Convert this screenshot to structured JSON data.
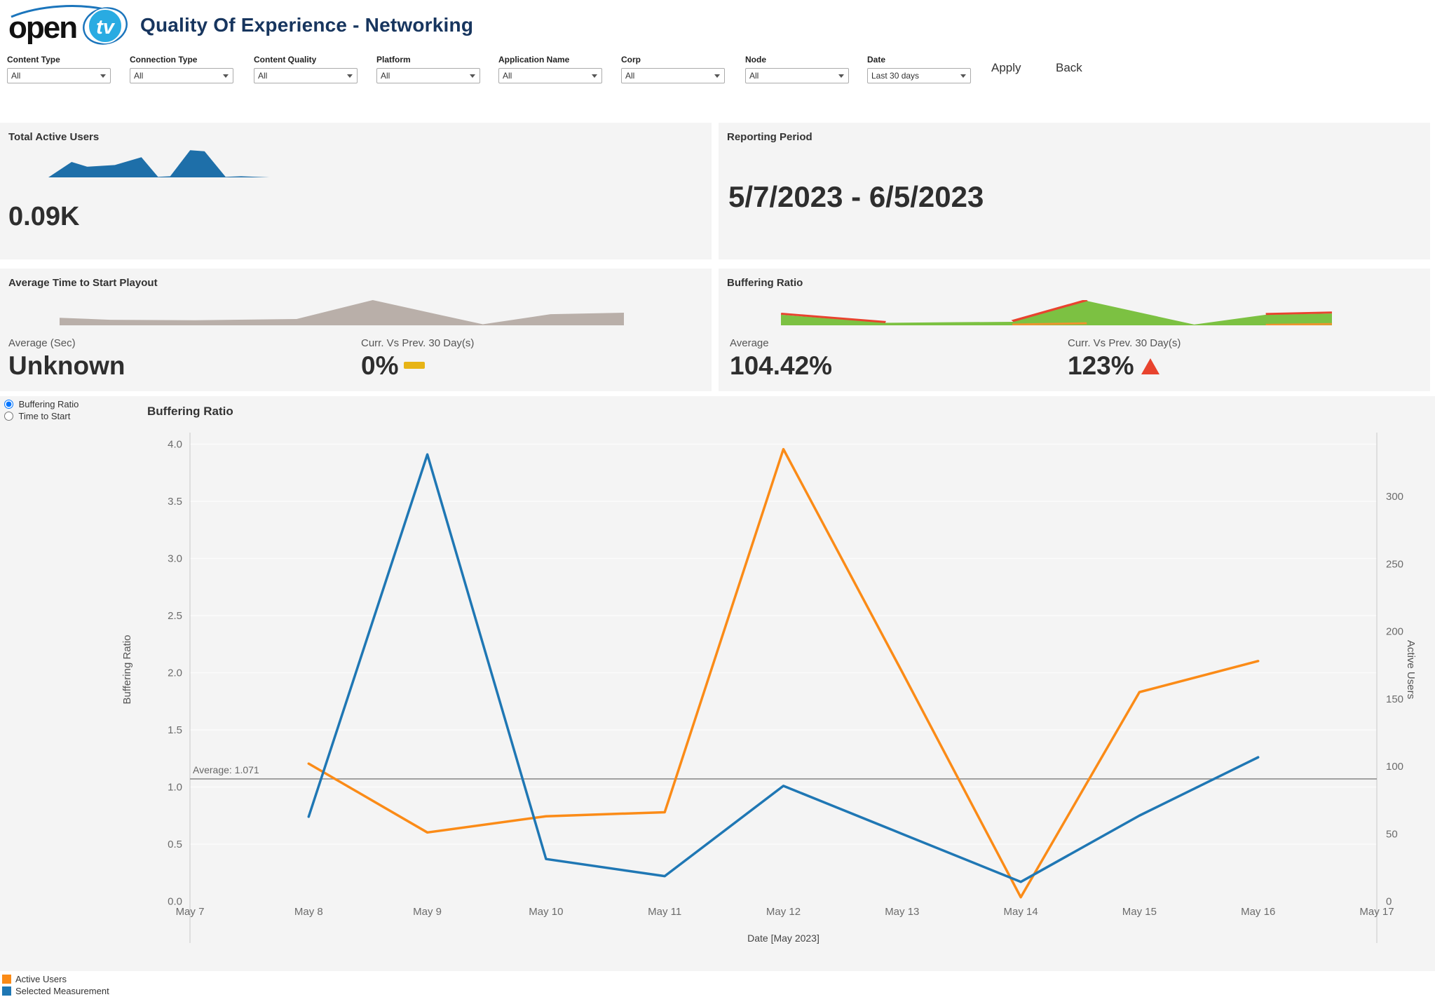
{
  "header": {
    "logo_text": "open",
    "logo_tv": "tv",
    "title": "Quality Of Experience - Networking"
  },
  "actions": {
    "apply": "Apply",
    "back": "Back"
  },
  "filters": [
    {
      "label": "Content Type",
      "value": "All"
    },
    {
      "label": "Connection Type",
      "value": "All"
    },
    {
      "label": "Content Quality",
      "value": "All"
    },
    {
      "label": "Platform",
      "value": "All"
    },
    {
      "label": "Application Name",
      "value": "All"
    },
    {
      "label": "Corp",
      "value": "All"
    },
    {
      "label": "Node",
      "value": "All"
    },
    {
      "label": "Date",
      "value": "Last 30 days"
    }
  ],
  "kpis": {
    "active_users": {
      "title": "Total Active Users",
      "value": "0.09K"
    },
    "reporting_period": {
      "title": "Reporting Period",
      "value": "5/7/2023 - 6/5/2023"
    },
    "time_to_start": {
      "title": "Average Time to Start Playout",
      "avg_label": "Average (Sec)",
      "avg_value": "Unknown",
      "delta_label": "Curr. Vs Prev. 30 Day(s)",
      "delta_value": "0%",
      "delta_direction": "flat",
      "delta_color": "#e7b416"
    },
    "buffering": {
      "title": "Buffering Ratio",
      "avg_label": "Average",
      "avg_value": "104.42%",
      "delta_label": "Curr. Vs Prev. 30 Day(s)",
      "delta_value": "123%",
      "delta_direction": "up",
      "delta_color": "#e8432e"
    }
  },
  "measurement_toggle": {
    "options": [
      {
        "label": "Buffering Ratio",
        "selected": true
      },
      {
        "label": "Time to Start",
        "selected": false
      }
    ]
  },
  "sparklines": {
    "active_users": {
      "color": "#1e6fa9",
      "points": [
        [
          0,
          0
        ],
        [
          0.105,
          0.55
        ],
        [
          0.175,
          0.38
        ],
        [
          0.3,
          0.44
        ],
        [
          0.42,
          0.72
        ],
        [
          0.495,
          0.02
        ],
        [
          0.55,
          0.04
        ],
        [
          0.64,
          0.97
        ],
        [
          0.705,
          0.93
        ],
        [
          0.8,
          0.02
        ],
        [
          0.87,
          0.04
        ],
        [
          1,
          0
        ]
      ]
    },
    "time_to_start": {
      "color": "#b9afa9",
      "points": [
        [
          0,
          0.3
        ],
        [
          0.09,
          0.22
        ],
        [
          0.24,
          0.2
        ],
        [
          0.42,
          0.25
        ],
        [
          0.555,
          1.0
        ],
        [
          0.75,
          0.04
        ],
        [
          0.87,
          0.44
        ],
        [
          1,
          0.5
        ]
      ]
    },
    "buffering": {
      "color": "#7cc142",
      "points": [
        [
          0,
          0.42
        ],
        [
          0.19,
          0.1
        ],
        [
          0.3,
          0.12
        ],
        [
          0.42,
          0.14
        ],
        [
          0.555,
          0.97
        ],
        [
          0.75,
          0.03
        ],
        [
          0.88,
          0.42
        ],
        [
          1,
          0.47
        ]
      ],
      "accents": [
        {
          "color": "#e8432e",
          "points": [
            [
              0,
              0.46
            ],
            [
              0.19,
              0.13
            ]
          ]
        },
        {
          "color": "#e8432e",
          "points": [
            [
              0.42,
              0.17
            ],
            [
              0.555,
              1.0
            ]
          ]
        },
        {
          "color": "#e8432e",
          "points": [
            [
              0.88,
              0.45
            ],
            [
              1,
              0.51
            ]
          ]
        },
        {
          "color": "#f0932f",
          "points": [
            [
              0.42,
              0.03
            ],
            [
              0.555,
              0.08
            ]
          ]
        },
        {
          "color": "#f0932f",
          "points": [
            [
              0.88,
              0.02
            ],
            [
              1,
              0.05
            ]
          ]
        }
      ]
    }
  },
  "chart_data": {
    "type": "line",
    "title": "Buffering Ratio",
    "categories": [
      "May 7",
      "May 8",
      "May 9",
      "May 10",
      "May 11",
      "May 12",
      "May 13",
      "May 14",
      "May 15",
      "May 16",
      "May 17"
    ],
    "xlabel": "Date [May 2023]",
    "left_axis": {
      "label": "Buffering Ratio",
      "ticks": [
        "0.0",
        "0.5",
        "1.0",
        "1.5",
        "2.0",
        "2.5",
        "3.0",
        "3.5",
        "4.0"
      ],
      "range": [
        0,
        4.13
      ]
    },
    "right_axis": {
      "label": "Active Users",
      "ticks": [
        0,
        50,
        100,
        150,
        200,
        250,
        300
      ],
      "range": [
        0,
        346
      ]
    },
    "average_line": {
      "label": "Average: 1.071",
      "value": 1.071
    },
    "grid": true,
    "legend_position": "bottom-left",
    "series": [
      {
        "name": "Active Users",
        "axis": "right",
        "color": "#fb8b17",
        "x": [
          "May 8",
          "May 9",
          "May 10",
          "May 11",
          "May 12",
          "May 13",
          "May 14",
          "May 15",
          "May 16"
        ],
        "values": [
          102,
          51,
          63,
          66,
          335,
          170,
          3,
          155,
          178
        ]
      },
      {
        "name": "Selected Measurement",
        "axis": "left",
        "color": "#1f77b4",
        "x": [
          "May 8",
          "May 9",
          "May 10",
          "May 11",
          "May 12",
          "May 13",
          "May 14",
          "May 15",
          "May 16"
        ],
        "values": [
          0.74,
          3.91,
          0.37,
          0.22,
          1.01,
          0.59,
          0.17,
          0.75,
          1.26
        ]
      }
    ]
  }
}
